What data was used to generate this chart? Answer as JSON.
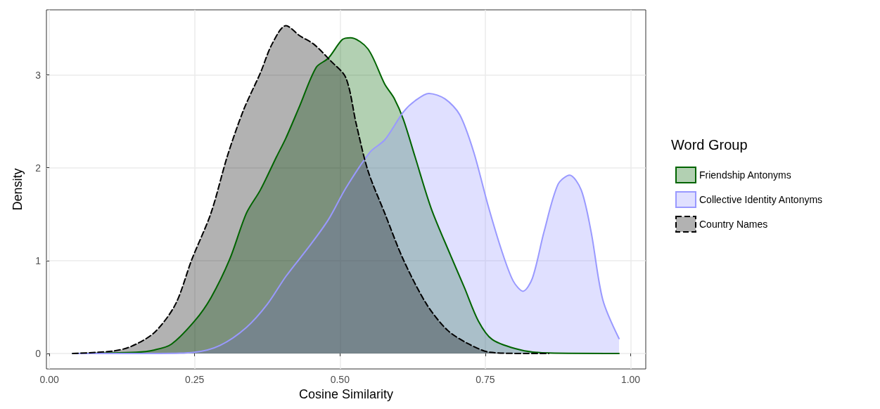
{
  "chart_data": {
    "type": "area",
    "xlabel": "Cosine Similarity",
    "ylabel": "Density",
    "legend_title": "Word Group",
    "legend": "right",
    "grid": true,
    "marker": "none",
    "xlim": [
      -0.005,
      1.026
    ],
    "ylim": [
      -0.167,
      3.7
    ],
    "xticks": [
      {
        "value": 0,
        "label": "0.00"
      },
      {
        "value": 0.25,
        "label": "0.25"
      },
      {
        "value": 0.5,
        "label": "0.50"
      },
      {
        "value": 0.75,
        "label": "0.75"
      },
      {
        "value": 1,
        "label": "1.00"
      }
    ],
    "yticks": [
      0,
      1,
      2,
      3
    ],
    "series": [
      {
        "name": "Friendship Antonyms",
        "color": "#006400",
        "line_style": "solid",
        "x": [
          0.04,
          0.149,
          0.181,
          0.21,
          0.25,
          0.278,
          0.31,
          0.339,
          0.363,
          0.391,
          0.407,
          0.431,
          0.459,
          0.48,
          0.504,
          0.518,
          0.548,
          0.577,
          0.593,
          0.609,
          0.629,
          0.657,
          0.69,
          0.714,
          0.738,
          0.762,
          0.811,
          0.859,
          0.98
        ],
        "values": [
          0,
          0.013,
          0.038,
          0.1,
          0.35,
          0.6,
          1.01,
          1.51,
          1.76,
          2.12,
          2.32,
          2.67,
          3.08,
          3.18,
          3.38,
          3.4,
          3.28,
          2.9,
          2.75,
          2.52,
          2.12,
          1.56,
          1.06,
          0.71,
          0.35,
          0.15,
          0.038,
          0.005,
          0
        ]
      },
      {
        "name": "Collective Identity Antonyms",
        "color": "#9999ff",
        "line_style": "solid",
        "x": [
          0.04,
          0.19,
          0.25,
          0.294,
          0.339,
          0.375,
          0.407,
          0.448,
          0.48,
          0.51,
          0.552,
          0.577,
          0.609,
          0.629,
          0.653,
          0.681,
          0.706,
          0.73,
          0.754,
          0.778,
          0.798,
          0.815,
          0.831,
          0.851,
          0.875,
          0.895,
          0.915,
          0.932,
          0.952,
          0.98
        ],
        "values": [
          0,
          0,
          0.013,
          0.088,
          0.28,
          0.53,
          0.83,
          1.16,
          1.44,
          1.78,
          2.17,
          2.3,
          2.6,
          2.72,
          2.8,
          2.74,
          2.57,
          2.17,
          1.61,
          1.11,
          0.78,
          0.67,
          0.81,
          1.31,
          1.82,
          1.92,
          1.76,
          1.31,
          0.58,
          0.16
        ]
      },
      {
        "name": "Country Names",
        "color": "#000000",
        "line_style": "dashed",
        "x": [
          0.04,
          0.109,
          0.141,
          0.181,
          0.217,
          0.245,
          0.278,
          0.306,
          0.334,
          0.363,
          0.383,
          0.407,
          0.431,
          0.455,
          0.484,
          0.51,
          0.528,
          0.548,
          0.577,
          0.609,
          0.649,
          0.685,
          0.722,
          0.758,
          0.819,
          0.859
        ],
        "values": [
          0,
          0.025,
          0.076,
          0.227,
          0.53,
          1.01,
          1.51,
          2.12,
          2.62,
          3.02,
          3.33,
          3.53,
          3.42,
          3.33,
          3.15,
          2.97,
          2.47,
          1.97,
          1.51,
          1.01,
          0.53,
          0.25,
          0.1,
          0.013,
          0,
          0
        ]
      }
    ]
  }
}
